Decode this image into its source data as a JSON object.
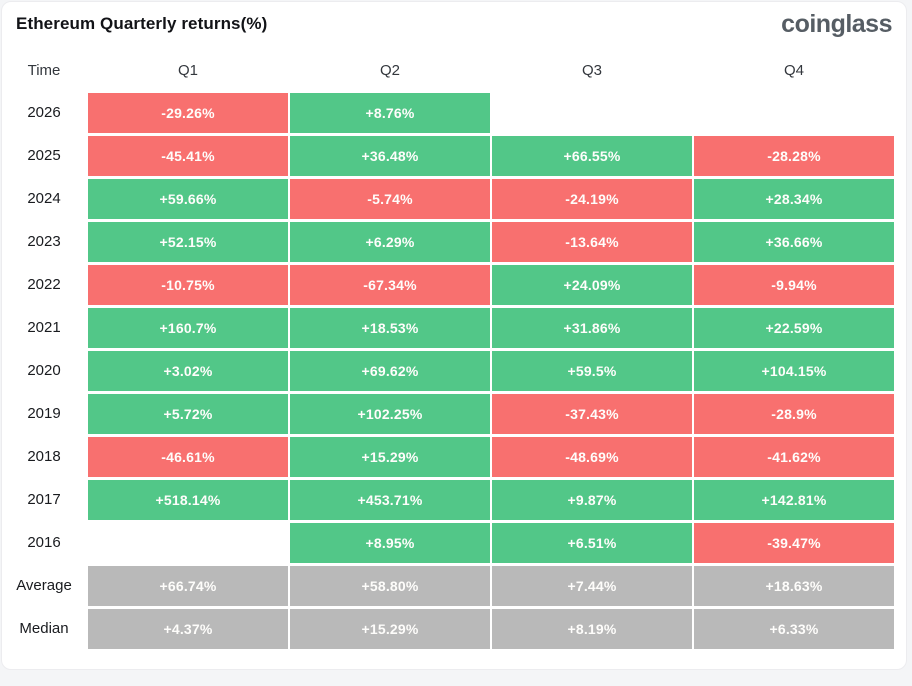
{
  "header": {
    "title": "Ethereum Quarterly returns(%)",
    "logo": "coinglass"
  },
  "colors": {
    "positive": "#52c788",
    "negative": "#f8706f",
    "neutral": "#b9b9b9"
  },
  "chart_data": {
    "type": "table",
    "title": "Ethereum Quarterly returns(%)",
    "columns": [
      "Time",
      "Q1",
      "Q2",
      "Q3",
      "Q4"
    ],
    "rows": [
      {
        "label": "2026",
        "cells": [
          {
            "text": "-29.26%",
            "value": -29.26,
            "color": "negative"
          },
          {
            "text": "+8.76%",
            "value": 8.76,
            "color": "positive"
          },
          null,
          null
        ]
      },
      {
        "label": "2025",
        "cells": [
          {
            "text": "-45.41%",
            "value": -45.41,
            "color": "negative"
          },
          {
            "text": "+36.48%",
            "value": 36.48,
            "color": "positive"
          },
          {
            "text": "+66.55%",
            "value": 66.55,
            "color": "positive"
          },
          {
            "text": "-28.28%",
            "value": -28.28,
            "color": "negative"
          }
        ]
      },
      {
        "label": "2024",
        "cells": [
          {
            "text": "+59.66%",
            "value": 59.66,
            "color": "positive"
          },
          {
            "text": "-5.74%",
            "value": -5.74,
            "color": "negative"
          },
          {
            "text": "-24.19%",
            "value": -24.19,
            "color": "negative"
          },
          {
            "text": "+28.34%",
            "value": 28.34,
            "color": "positive"
          }
        ]
      },
      {
        "label": "2023",
        "cells": [
          {
            "text": "+52.15%",
            "value": 52.15,
            "color": "positive"
          },
          {
            "text": "+6.29%",
            "value": 6.29,
            "color": "positive"
          },
          {
            "text": "-13.64%",
            "value": -13.64,
            "color": "negative"
          },
          {
            "text": "+36.66%",
            "value": 36.66,
            "color": "positive"
          }
        ]
      },
      {
        "label": "2022",
        "cells": [
          {
            "text": "-10.75%",
            "value": -10.75,
            "color": "negative"
          },
          {
            "text": "-67.34%",
            "value": -67.34,
            "color": "negative"
          },
          {
            "text": "+24.09%",
            "value": 24.09,
            "color": "positive"
          },
          {
            "text": "-9.94%",
            "value": -9.94,
            "color": "negative"
          }
        ]
      },
      {
        "label": "2021",
        "cells": [
          {
            "text": "+160.7%",
            "value": 160.7,
            "color": "positive"
          },
          {
            "text": "+18.53%",
            "value": 18.53,
            "color": "positive"
          },
          {
            "text": "+31.86%",
            "value": 31.86,
            "color": "positive"
          },
          {
            "text": "+22.59%",
            "value": 22.59,
            "color": "positive"
          }
        ]
      },
      {
        "label": "2020",
        "cells": [
          {
            "text": "+3.02%",
            "value": 3.02,
            "color": "positive"
          },
          {
            "text": "+69.62%",
            "value": 69.62,
            "color": "positive"
          },
          {
            "text": "+59.5%",
            "value": 59.5,
            "color": "positive"
          },
          {
            "text": "+104.15%",
            "value": 104.15,
            "color": "positive"
          }
        ]
      },
      {
        "label": "2019",
        "cells": [
          {
            "text": "+5.72%",
            "value": 5.72,
            "color": "positive"
          },
          {
            "text": "+102.25%",
            "value": 102.25,
            "color": "positive"
          },
          {
            "text": "-37.43%",
            "value": -37.43,
            "color": "negative"
          },
          {
            "text": "-28.9%",
            "value": -28.9,
            "color": "negative"
          }
        ]
      },
      {
        "label": "2018",
        "cells": [
          {
            "text": "-46.61%",
            "value": -46.61,
            "color": "negative"
          },
          {
            "text": "+15.29%",
            "value": 15.29,
            "color": "positive"
          },
          {
            "text": "-48.69%",
            "value": -48.69,
            "color": "negative"
          },
          {
            "text": "-41.62%",
            "value": -41.62,
            "color": "negative"
          }
        ]
      },
      {
        "label": "2017",
        "cells": [
          {
            "text": "+518.14%",
            "value": 518.14,
            "color": "positive"
          },
          {
            "text": "+453.71%",
            "value": 453.71,
            "color": "positive"
          },
          {
            "text": "+9.87%",
            "value": 9.87,
            "color": "positive"
          },
          {
            "text": "+142.81%",
            "value": 142.81,
            "color": "positive"
          }
        ]
      },
      {
        "label": "2016",
        "cells": [
          null,
          {
            "text": "+8.95%",
            "value": 8.95,
            "color": "positive"
          },
          {
            "text": "+6.51%",
            "value": 6.51,
            "color": "positive"
          },
          {
            "text": "-39.47%",
            "value": -39.47,
            "color": "negative"
          }
        ]
      },
      {
        "label": "Average",
        "cells": [
          {
            "text": "+66.74%",
            "value": 66.74,
            "color": "neutral"
          },
          {
            "text": "+58.80%",
            "value": 58.8,
            "color": "neutral"
          },
          {
            "text": "+7.44%",
            "value": 7.44,
            "color": "neutral"
          },
          {
            "text": "+18.63%",
            "value": 18.63,
            "color": "neutral"
          }
        ]
      },
      {
        "label": "Median",
        "cells": [
          {
            "text": "+4.37%",
            "value": 4.37,
            "color": "neutral"
          },
          {
            "text": "+15.29%",
            "value": 15.29,
            "color": "neutral"
          },
          {
            "text": "+8.19%",
            "value": 8.19,
            "color": "neutral"
          },
          {
            "text": "+6.33%",
            "value": 6.33,
            "color": "neutral"
          }
        ]
      }
    ]
  }
}
